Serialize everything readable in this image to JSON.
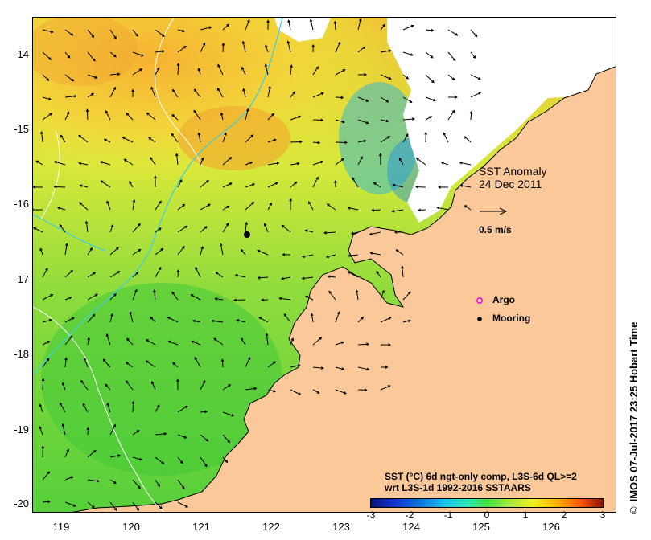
{
  "title": "SST Anomaly",
  "date": "24 Dec 2011",
  "vector_scale_label": "0.5 m/s",
  "legend": {
    "argo_label": "Argo",
    "mooring_label": "Mooring",
    "argo_color": "#ff00ff",
    "mooring_color": "#000000"
  },
  "colorbar": {
    "caption_line1": "SST (°C) 6d ngt-only comp, L3S-6d QL>=2",
    "caption_line2": "wrt L3S-1d 1992-2016 SSTAARS",
    "ticks": [
      "-3",
      "-2",
      "-1",
      "0",
      "1",
      "2",
      "3"
    ],
    "range": [
      -3,
      3
    ]
  },
  "axes": {
    "y_ticks": [
      "-14",
      "-15",
      "-16",
      "-17",
      "-18",
      "-19",
      "-20"
    ],
    "x_ticks": [
      "119",
      "120",
      "121",
      "122",
      "123",
      "124",
      "125",
      "126"
    ]
  },
  "credit": "IMOS 07-Jul-2017 23:25 Hobart Time",
  "credit_symbol": "©",
  "colors": {
    "land": "#fbc89a",
    "no_data": "#ffffff",
    "contour": "#ffffff",
    "path": "#3ccfe0"
  }
}
